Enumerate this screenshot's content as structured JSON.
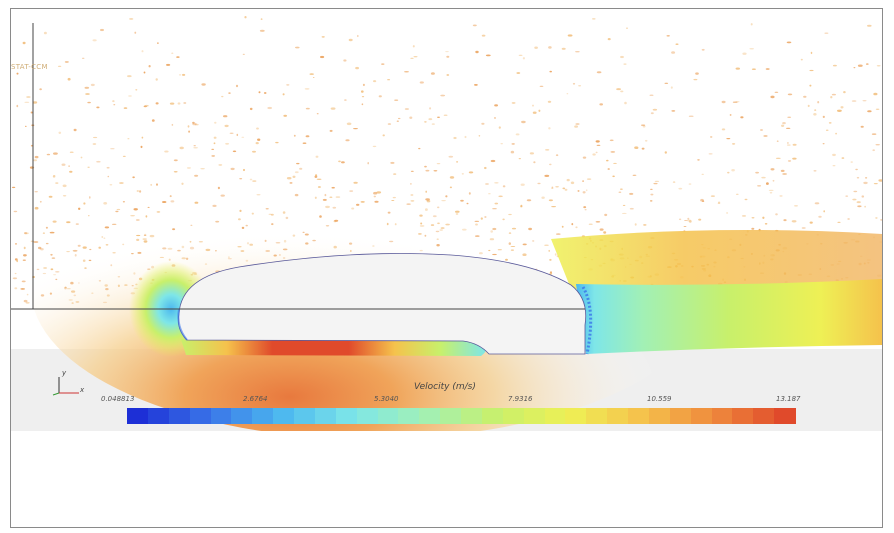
{
  "visualization": {
    "overlay_label": "STAT-CCM",
    "colorbar": {
      "title": "Velocity (m/s)",
      "ticks": [
        "0.048813",
        "2.6764",
        "5.3040",
        "7.9316",
        "10.559",
        "13.187"
      ],
      "min": 0.048813,
      "max": 13.187,
      "colors": [
        "#1d2fd6",
        "#3a74e8",
        "#4cb8ef",
        "#7ee6e8",
        "#a2f0b5",
        "#c8f06b",
        "#eef055",
        "#f5c24c",
        "#ef8a3d",
        "#e04a2b"
      ]
    },
    "axis_triad": {
      "y_label": "y",
      "x_label": "x"
    }
  }
}
